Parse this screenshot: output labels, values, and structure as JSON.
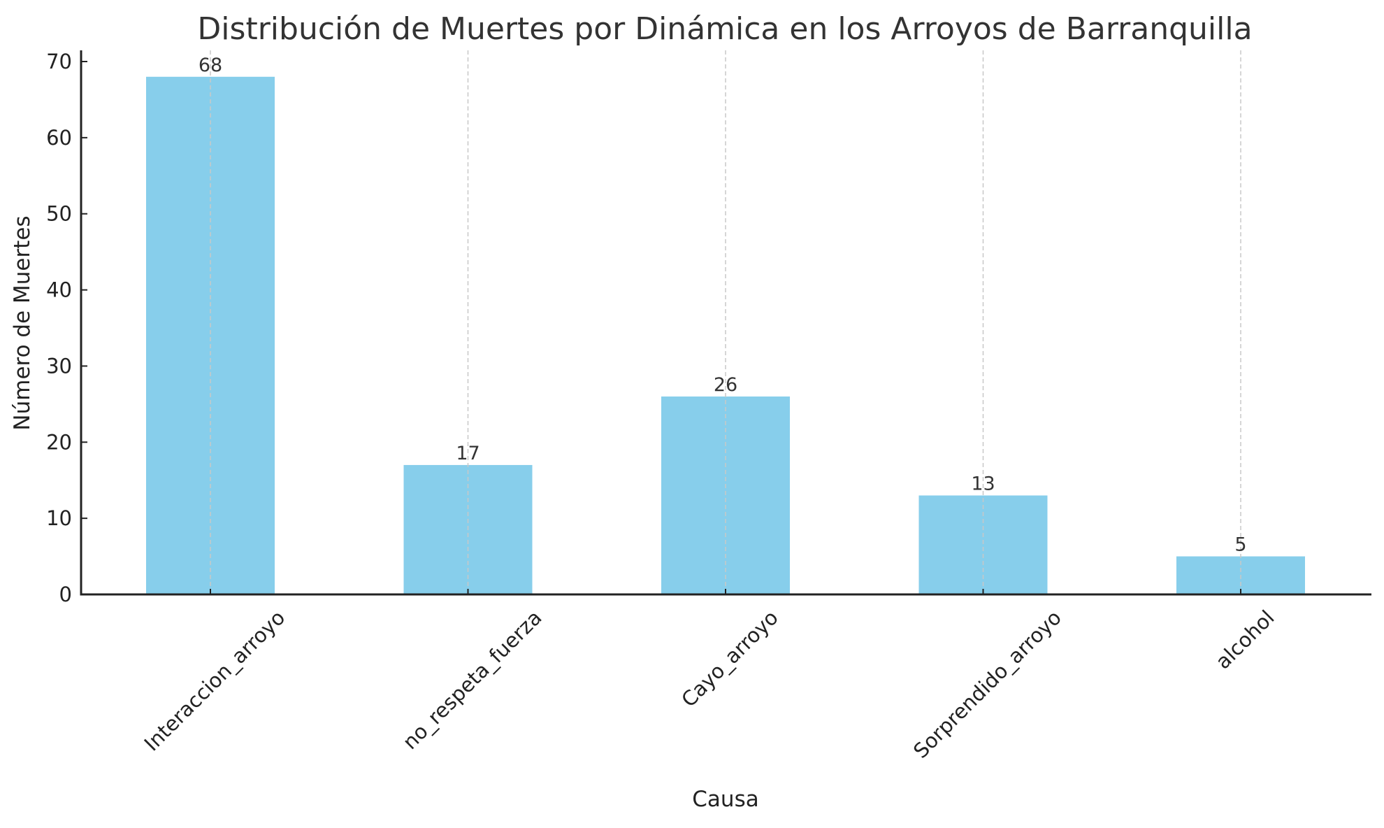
{
  "chart_data": {
    "type": "bar",
    "title": "Distribución de Muertes por Dinámica en los Arroyos de Barranquilla",
    "xlabel": "Causa",
    "ylabel": "Número de Muertes",
    "categories": [
      "Interaccion_arroyo",
      "no_respeta_fuerza",
      "Cayo_arroyo",
      "Sorprendido_arroyo",
      "alcohol"
    ],
    "values": [
      68,
      17,
      26,
      13,
      5
    ],
    "data_labels": [
      "68",
      "17",
      "26",
      "13",
      "5"
    ],
    "ylim": [
      0,
      71.5
    ],
    "yticks": [
      0,
      10,
      20,
      30,
      40,
      50,
      60,
      70
    ],
    "ytick_labels": [
      "0",
      "10",
      "20",
      "30",
      "40",
      "50",
      "60",
      "70"
    ],
    "xtick_rotation": 45,
    "grid": {
      "axis": "x",
      "style": "dashed",
      "color": "#c8c8c8"
    },
    "legend": null,
    "colors": {
      "bar": "#87CEEB",
      "axis": "#222222",
      "text": "#222222",
      "title": "#333333",
      "grid": "#c8c8c8"
    }
  }
}
